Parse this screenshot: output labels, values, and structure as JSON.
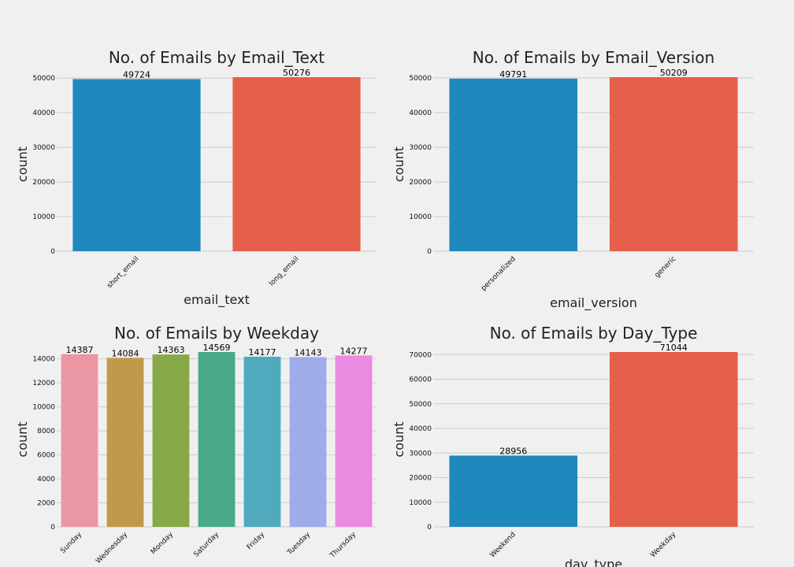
{
  "chart_data": [
    {
      "type": "bar",
      "title": "No. of Emails by Email_Text",
      "xlabel": "email_text",
      "ylabel": "count",
      "categories": [
        "short_email",
        "long_email"
      ],
      "values": [
        49724,
        50276
      ],
      "data_labels": [
        "49724",
        "50276"
      ],
      "colors": [
        "#1f88bd",
        "#e5604a"
      ],
      "ylim": [
        0,
        50276
      ],
      "yticks": [
        0,
        10000,
        20000,
        30000,
        40000,
        50000
      ],
      "grid": true
    },
    {
      "type": "bar",
      "title": "No. of Emails by Email_Version",
      "xlabel": "email_version",
      "ylabel": "count",
      "categories": [
        "personalized",
        "generic"
      ],
      "values": [
        49791,
        50209
      ],
      "data_labels": [
        "49791",
        "50209"
      ],
      "colors": [
        "#1f88bd",
        "#e5604a"
      ],
      "ylim": [
        0,
        50209
      ],
      "yticks": [
        0,
        10000,
        20000,
        30000,
        40000,
        50000
      ],
      "grid": true
    },
    {
      "type": "bar",
      "title": "No. of Emails by Weekday",
      "xlabel": "",
      "ylabel": "count",
      "categories": [
        "Sunday",
        "Wednesday",
        "Monday",
        "Saturday",
        "Friday",
        "Tuesday",
        "Thursday"
      ],
      "values": [
        14387,
        14084,
        14363,
        14569,
        14177,
        14143,
        14277
      ],
      "data_labels": [
        "14387",
        "14084",
        "14363",
        "14569",
        "14177",
        "14143",
        "14277"
      ],
      "colors": [
        "#eb97a3",
        "#c1994b",
        "#88a947",
        "#49a98a",
        "#4faabd",
        "#a0abea",
        "#ea8ae0"
      ],
      "ylim": [
        0,
        14569
      ],
      "yticks": [
        0,
        2000,
        4000,
        6000,
        8000,
        10000,
        12000,
        14000
      ],
      "grid": true
    },
    {
      "type": "bar",
      "title": "No. of Emails by Day_Type",
      "xlabel": "day_type",
      "ylabel": "count",
      "categories": [
        "Weekend",
        "Weekday"
      ],
      "values": [
        28956,
        71044
      ],
      "data_labels": [
        "28956",
        "71044"
      ],
      "colors": [
        "#1f88bd",
        "#e5604a"
      ],
      "ylim": [
        0,
        71044
      ],
      "yticks": [
        0,
        10000,
        20000,
        30000,
        40000,
        50000,
        60000,
        70000
      ],
      "grid": true
    }
  ]
}
